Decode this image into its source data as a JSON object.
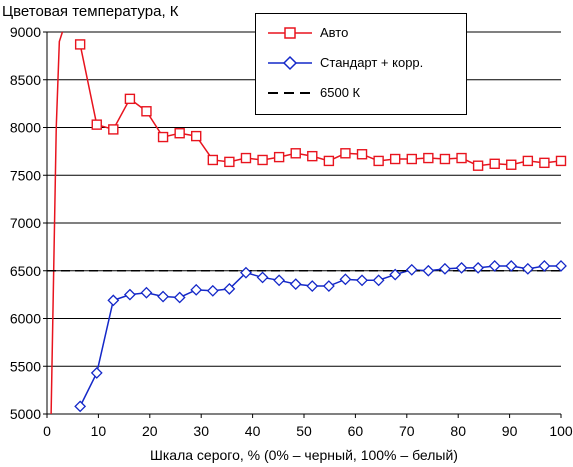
{
  "chart_data": {
    "type": "line",
    "title": "Цветовая температура, К",
    "xlabel": "Шкала серого, % (0% – черный, 100% – белый)",
    "ylabel": "",
    "xlim": [
      0,
      100
    ],
    "ylim": [
      5000,
      9000
    ],
    "xticks": [
      "0",
      "10",
      "20",
      "30",
      "40",
      "50",
      "60",
      "70",
      "80",
      "90",
      "100"
    ],
    "yticks": [
      "5000",
      "5500",
      "6000",
      "6500",
      "7000",
      "7500",
      "8000",
      "8500",
      "9000"
    ],
    "grid": "horizontal",
    "legend_position": "top-right",
    "series": [
      {
        "name": "Авто",
        "color": "#e8141e",
        "marker": "square",
        "x": [
          6.45,
          9.68,
          12.9,
          16.13,
          19.35,
          22.58,
          25.81,
          29.03,
          32.26,
          35.48,
          38.71,
          41.94,
          45.16,
          48.39,
          51.61,
          54.84,
          58.06,
          61.29,
          64.52,
          67.74,
          70.97,
          74.19,
          77.42,
          80.65,
          83.87,
          87.1,
          90.32,
          93.55,
          96.77,
          100
        ],
        "y": [
          8870,
          8030,
          7980,
          8300,
          8170,
          7900,
          7940,
          7910,
          7660,
          7640,
          7680,
          7660,
          7690,
          7730,
          7700,
          7650,
          7730,
          7720,
          7650,
          7670,
          7670,
          7680,
          7670,
          7680,
          7600,
          7620,
          7610,
          7650,
          7630,
          7650
        ]
      },
      {
        "name": "Стандарт + корр.",
        "color": "#1428c8",
        "marker": "diamond",
        "x": [
          6.45,
          9.68,
          12.9,
          16.13,
          19.35,
          22.58,
          25.81,
          29.03,
          32.26,
          35.48,
          38.71,
          41.94,
          45.16,
          48.39,
          51.61,
          54.84,
          58.06,
          61.29,
          64.52,
          67.74,
          70.97,
          74.19,
          77.42,
          80.65,
          83.87,
          87.1,
          90.32,
          93.55,
          96.77,
          100
        ],
        "y": [
          5080,
          5430,
          6190,
          6250,
          6270,
          6230,
          6220,
          6300,
          6290,
          6310,
          6480,
          6430,
          6400,
          6360,
          6340,
          6340,
          6410,
          6400,
          6400,
          6460,
          6510,
          6500,
          6520,
          6530,
          6530,
          6550,
          6550,
          6520,
          6550,
          6550
        ]
      },
      {
        "name": "6500 К",
        "color": "#000000",
        "marker": "none",
        "dashed": true,
        "x": [
          0,
          100
        ],
        "y": [
          6500,
          6500
        ]
      }
    ],
    "offscale_curve": {
      "series": "Авто",
      "x": [
        0.8,
        1.3,
        1.8,
        2.4,
        3.0
      ],
      "y": [
        5000,
        6500,
        8000,
        8900,
        9000
      ]
    }
  }
}
